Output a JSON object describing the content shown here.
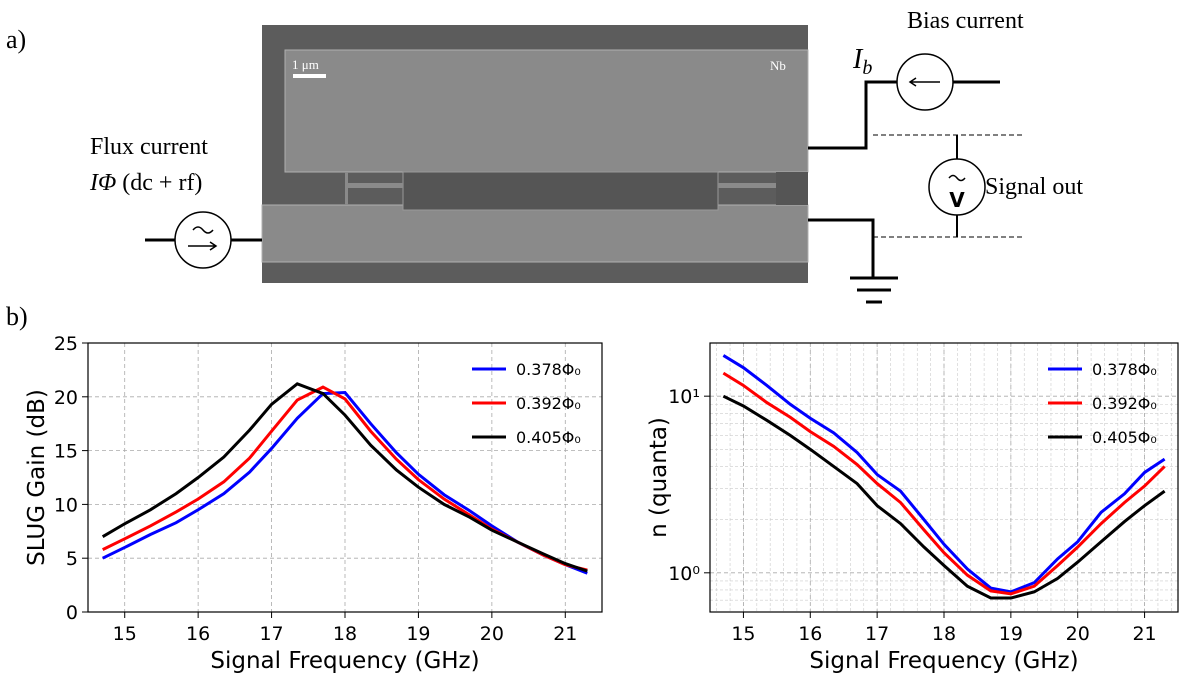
{
  "figure": {
    "panel_a": "a)",
    "panel_b": "b)",
    "bias_current": "Bias current",
    "bias_symbol": "I",
    "bias_sub": "b",
    "flux_current": "Flux current",
    "flux_symbol": "IΦ",
    "flux_note": "(dc + rf)",
    "signal_out": "Signal out",
    "scale_bar": "1 μm",
    "material": "Nb",
    "voltmeter": "V"
  },
  "chart_data": [
    {
      "type": "line",
      "xlabel": "Signal Frequency (GHz)",
      "ylabel": "SLUG Gain (dB)",
      "x": [
        14.7,
        15.0,
        15.35,
        15.7,
        16.0,
        16.35,
        16.7,
        17.0,
        17.35,
        17.7,
        18.0,
        18.35,
        18.7,
        19.0,
        19.35,
        19.7,
        20.0,
        20.35,
        20.7,
        21.0,
        21.3
      ],
      "series": [
        {
          "name": "0.378Φ₀",
          "color": "#0000ff",
          "values": [
            5.0,
            6.0,
            7.2,
            8.3,
            9.5,
            11.0,
            13.0,
            15.2,
            18.0,
            20.3,
            20.4,
            17.5,
            14.8,
            12.8,
            10.9,
            9.4,
            8.0,
            6.5,
            5.3,
            4.4,
            3.6
          ]
        },
        {
          "name": "0.392Φ₀",
          "color": "#ff0000",
          "values": [
            5.8,
            6.8,
            8.0,
            9.3,
            10.5,
            12.1,
            14.3,
            16.8,
            19.7,
            20.9,
            19.8,
            16.8,
            14.2,
            12.3,
            10.5,
            9.0,
            7.7,
            6.5,
            5.3,
            4.4,
            3.9
          ]
        },
        {
          "name": "0.405Φ₀",
          "color": "#000000",
          "values": [
            7.0,
            8.2,
            9.5,
            11.0,
            12.5,
            14.4,
            16.9,
            19.3,
            21.2,
            20.3,
            18.3,
            15.5,
            13.2,
            11.6,
            10.0,
            8.8,
            7.6,
            6.5,
            5.4,
            4.5,
            3.8
          ]
        }
      ],
      "xlim": [
        14.5,
        21.5
      ],
      "xticks": [
        15,
        16,
        17,
        18,
        19,
        20,
        21
      ],
      "ylim": [
        0,
        25
      ],
      "yticks": [
        0,
        5,
        10,
        15,
        20,
        25
      ],
      "grid": true,
      "minor_grid": false,
      "log_y": false,
      "legend": "upper right"
    },
    {
      "type": "line",
      "xlabel": "Signal Frequency (GHz)",
      "ylabel": "n (quanta)",
      "x": [
        14.7,
        15.0,
        15.35,
        15.7,
        16.0,
        16.35,
        16.7,
        17.0,
        17.35,
        17.7,
        18.0,
        18.35,
        18.7,
        19.0,
        19.35,
        19.7,
        20.0,
        20.35,
        20.7,
        21.0,
        21.3
      ],
      "series": [
        {
          "name": "0.378Φ₀",
          "color": "#0000ff",
          "values": [
            17,
            14.5,
            11.5,
            9.0,
            7.5,
            6.2,
            4.8,
            3.6,
            2.9,
            2.0,
            1.45,
            1.05,
            0.82,
            0.78,
            0.88,
            1.2,
            1.5,
            2.2,
            2.8,
            3.7,
            4.4
          ]
        },
        {
          "name": "0.392Φ₀",
          "color": "#ff0000",
          "values": [
            13.5,
            11.5,
            9.2,
            7.6,
            6.3,
            5.2,
            4.1,
            3.2,
            2.5,
            1.75,
            1.3,
            0.97,
            0.79,
            0.76,
            0.84,
            1.1,
            1.4,
            1.9,
            2.5,
            3.1,
            4.0
          ]
        },
        {
          "name": "0.405Φ₀",
          "color": "#000000",
          "values": [
            10.0,
            8.8,
            7.3,
            6.0,
            5.0,
            4.0,
            3.2,
            2.4,
            1.9,
            1.4,
            1.1,
            0.84,
            0.72,
            0.72,
            0.78,
            0.93,
            1.15,
            1.5,
            1.95,
            2.4,
            2.9
          ]
        }
      ],
      "xlim": [
        14.5,
        21.5
      ],
      "xticks": [
        15,
        16,
        17,
        18,
        19,
        20,
        21
      ],
      "ylim": [
        0.6,
        20
      ],
      "yticks": [
        {
          "value": 1,
          "label": "10⁰"
        },
        {
          "value": 10,
          "label": "10¹"
        }
      ],
      "grid": true,
      "minor_grid": true,
      "log_y": true,
      "legend": "upper right"
    }
  ]
}
